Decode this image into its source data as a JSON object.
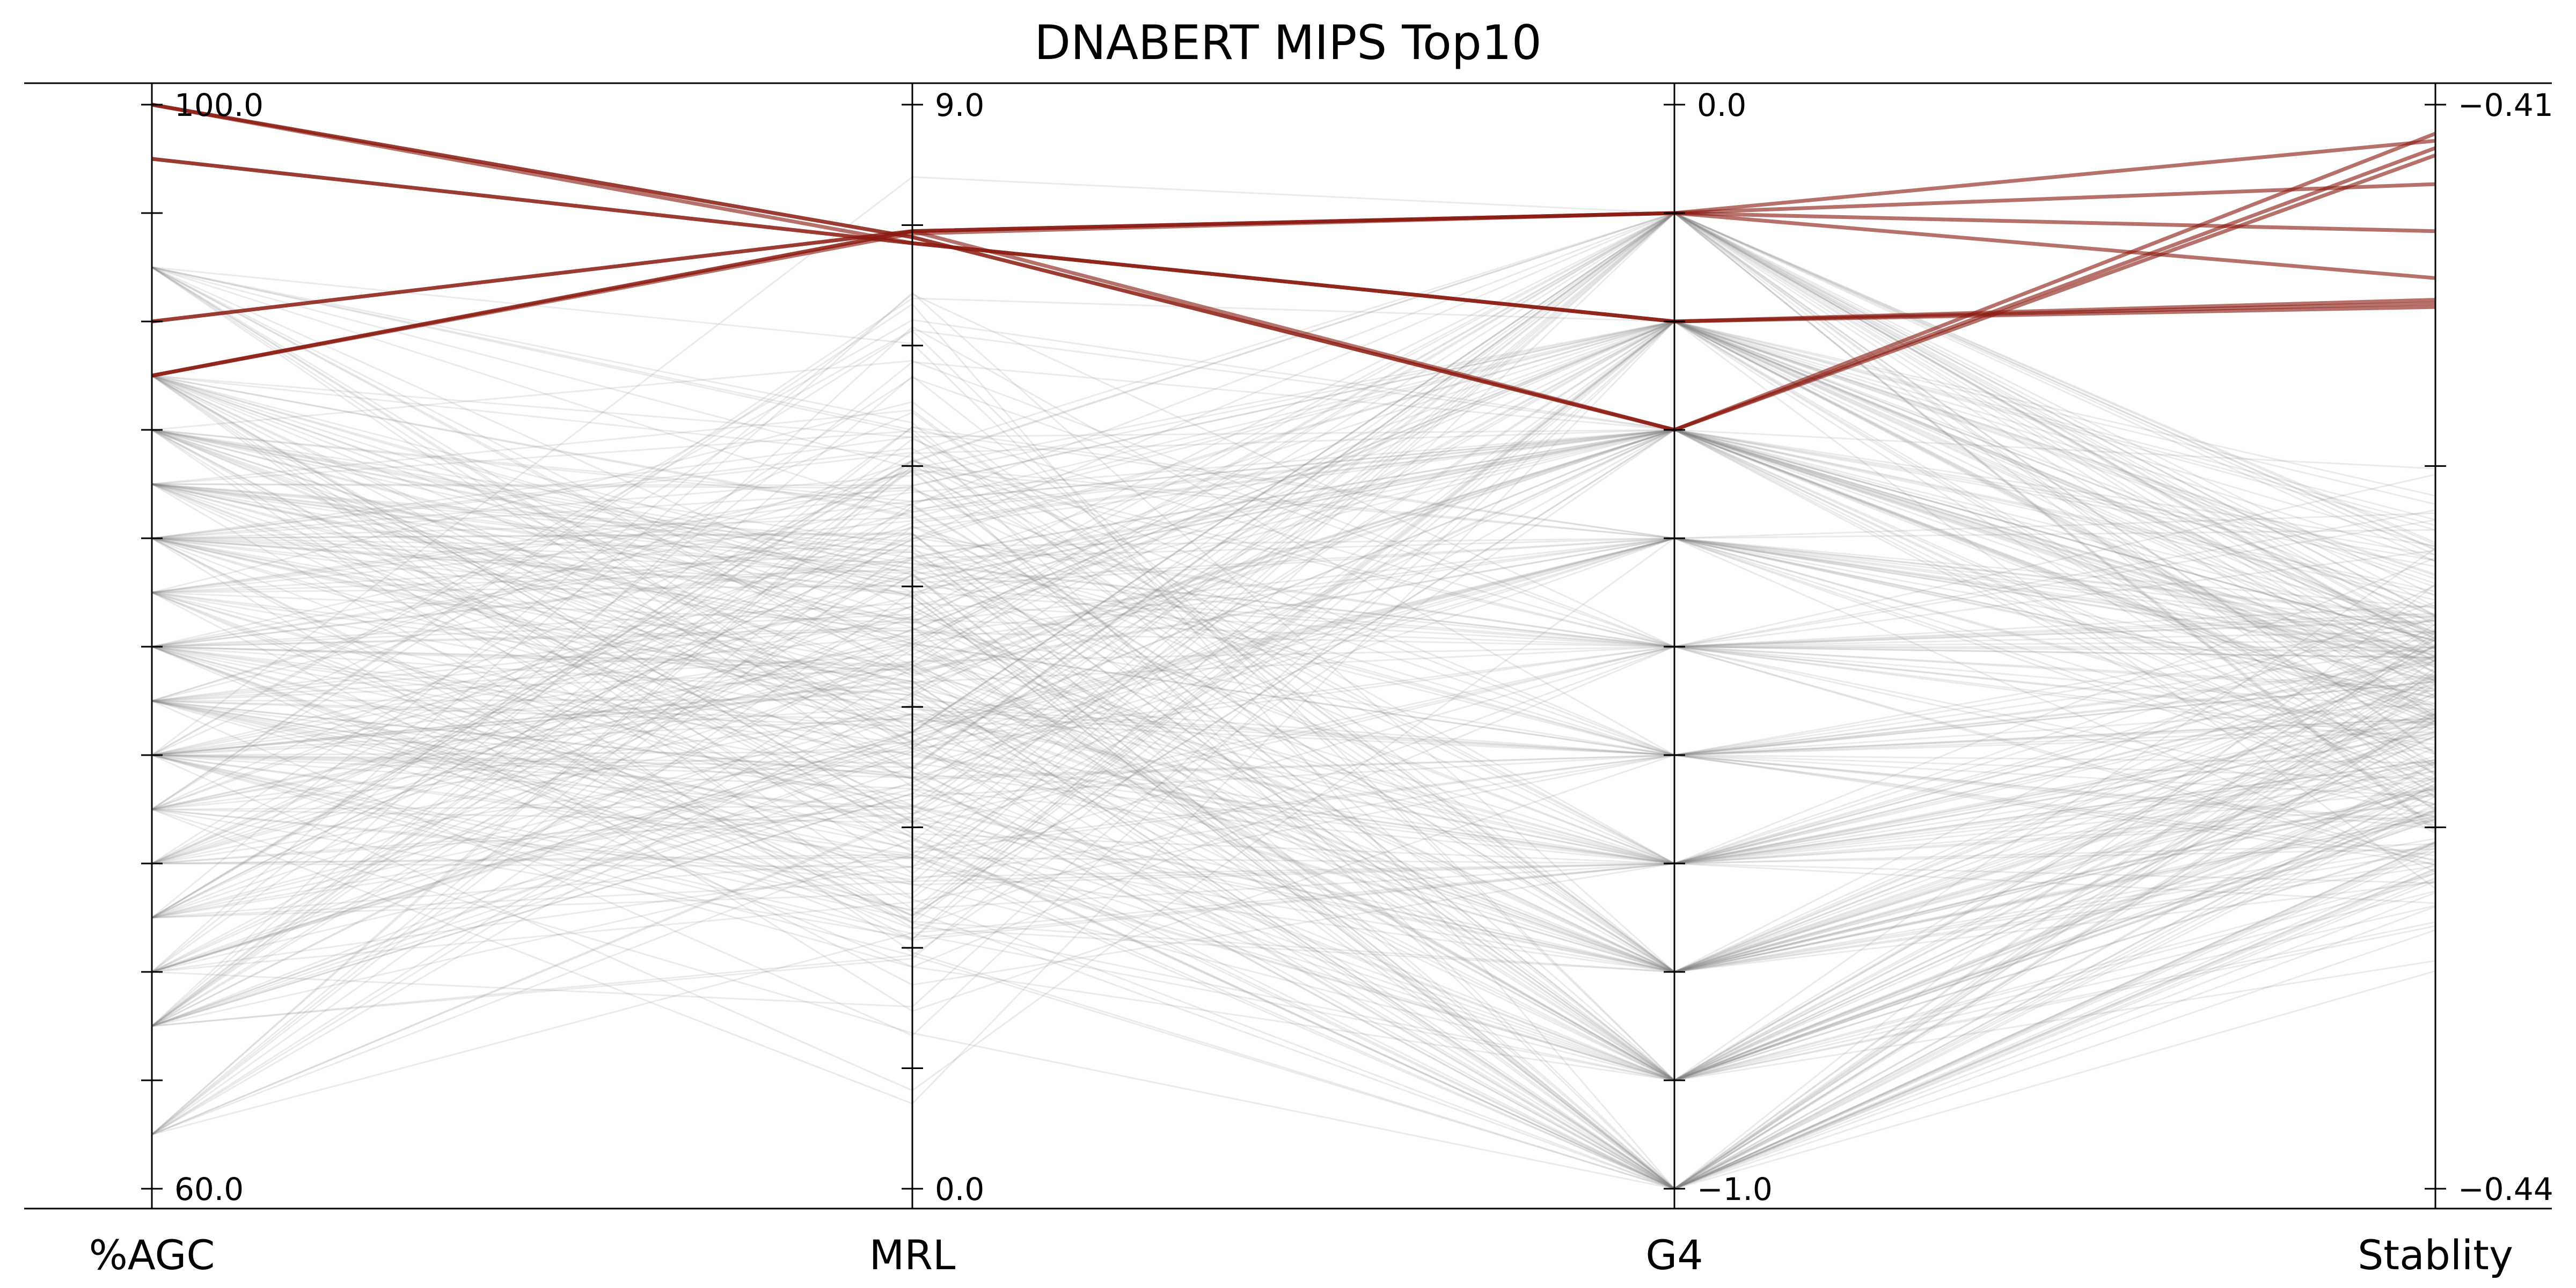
{
  "chart_data": {
    "type": "parallel-coordinates",
    "title": "DNABERT MIPS Top10",
    "axes": [
      {
        "name": "%AGC",
        "min_label": "60.0",
        "max_label": "100.0",
        "range": [
          60.0,
          100.0
        ],
        "ticks": 11,
        "label_side": "right"
      },
      {
        "name": "MRL",
        "min_label": "0.0",
        "max_label": "9.0",
        "range": [
          0.0,
          9.0
        ],
        "ticks": 10,
        "label_side": "right"
      },
      {
        "name": "G4",
        "min_label": "−1.0",
        "max_label": "0.0",
        "range": [
          -1.0,
          0.0
        ],
        "ticks": 11,
        "label_side": "right"
      },
      {
        "name": "Stablity",
        "min_label": "−0.44",
        "max_label": "−0.41",
        "range": [
          -0.44,
          -0.41
        ],
        "ticks": 4,
        "label_side": "right"
      }
    ],
    "highlighted_series": [
      {
        "values": [
          100.0,
          7.9,
          -0.3,
          -0.4108
        ]
      },
      {
        "values": [
          100.0,
          7.9,
          -0.3,
          -0.4112
        ]
      },
      {
        "values": [
          98.0,
          7.85,
          -0.2,
          -0.4154
        ]
      },
      {
        "values": [
          98.0,
          7.85,
          -0.2,
          -0.4156
        ]
      },
      {
        "values": [
          92.0,
          7.95,
          -0.1,
          -0.4135
        ]
      },
      {
        "values": [
          92.0,
          7.95,
          -0.1,
          -0.4122
        ]
      },
      {
        "values": [
          90.0,
          7.95,
          -0.1,
          -0.4148
        ]
      },
      {
        "values": [
          90.0,
          7.95,
          -0.3,
          -0.4114
        ]
      },
      {
        "values": [
          100.0,
          7.85,
          -0.2,
          -0.4155
        ]
      },
      {
        "values": [
          90.0,
          7.93,
          -0.1,
          -0.411
        ]
      }
    ],
    "background_series": {
      "count": 320,
      "color": "#808080",
      "agc_levels": [
        76,
        78,
        80,
        82,
        84,
        86,
        88,
        72,
        74,
        70,
        68,
        66,
        62,
        90,
        94
      ],
      "g4_levels": [
        -0.1,
        -0.2,
        -0.3,
        -0.4,
        -0.5,
        -0.6,
        -0.7,
        -0.8,
        -0.9,
        -1.0
      ],
      "stability_center": -0.4245
    },
    "colors": {
      "highlight": "#8b1a10",
      "background": "#808080",
      "axis": "#000000"
    }
  }
}
